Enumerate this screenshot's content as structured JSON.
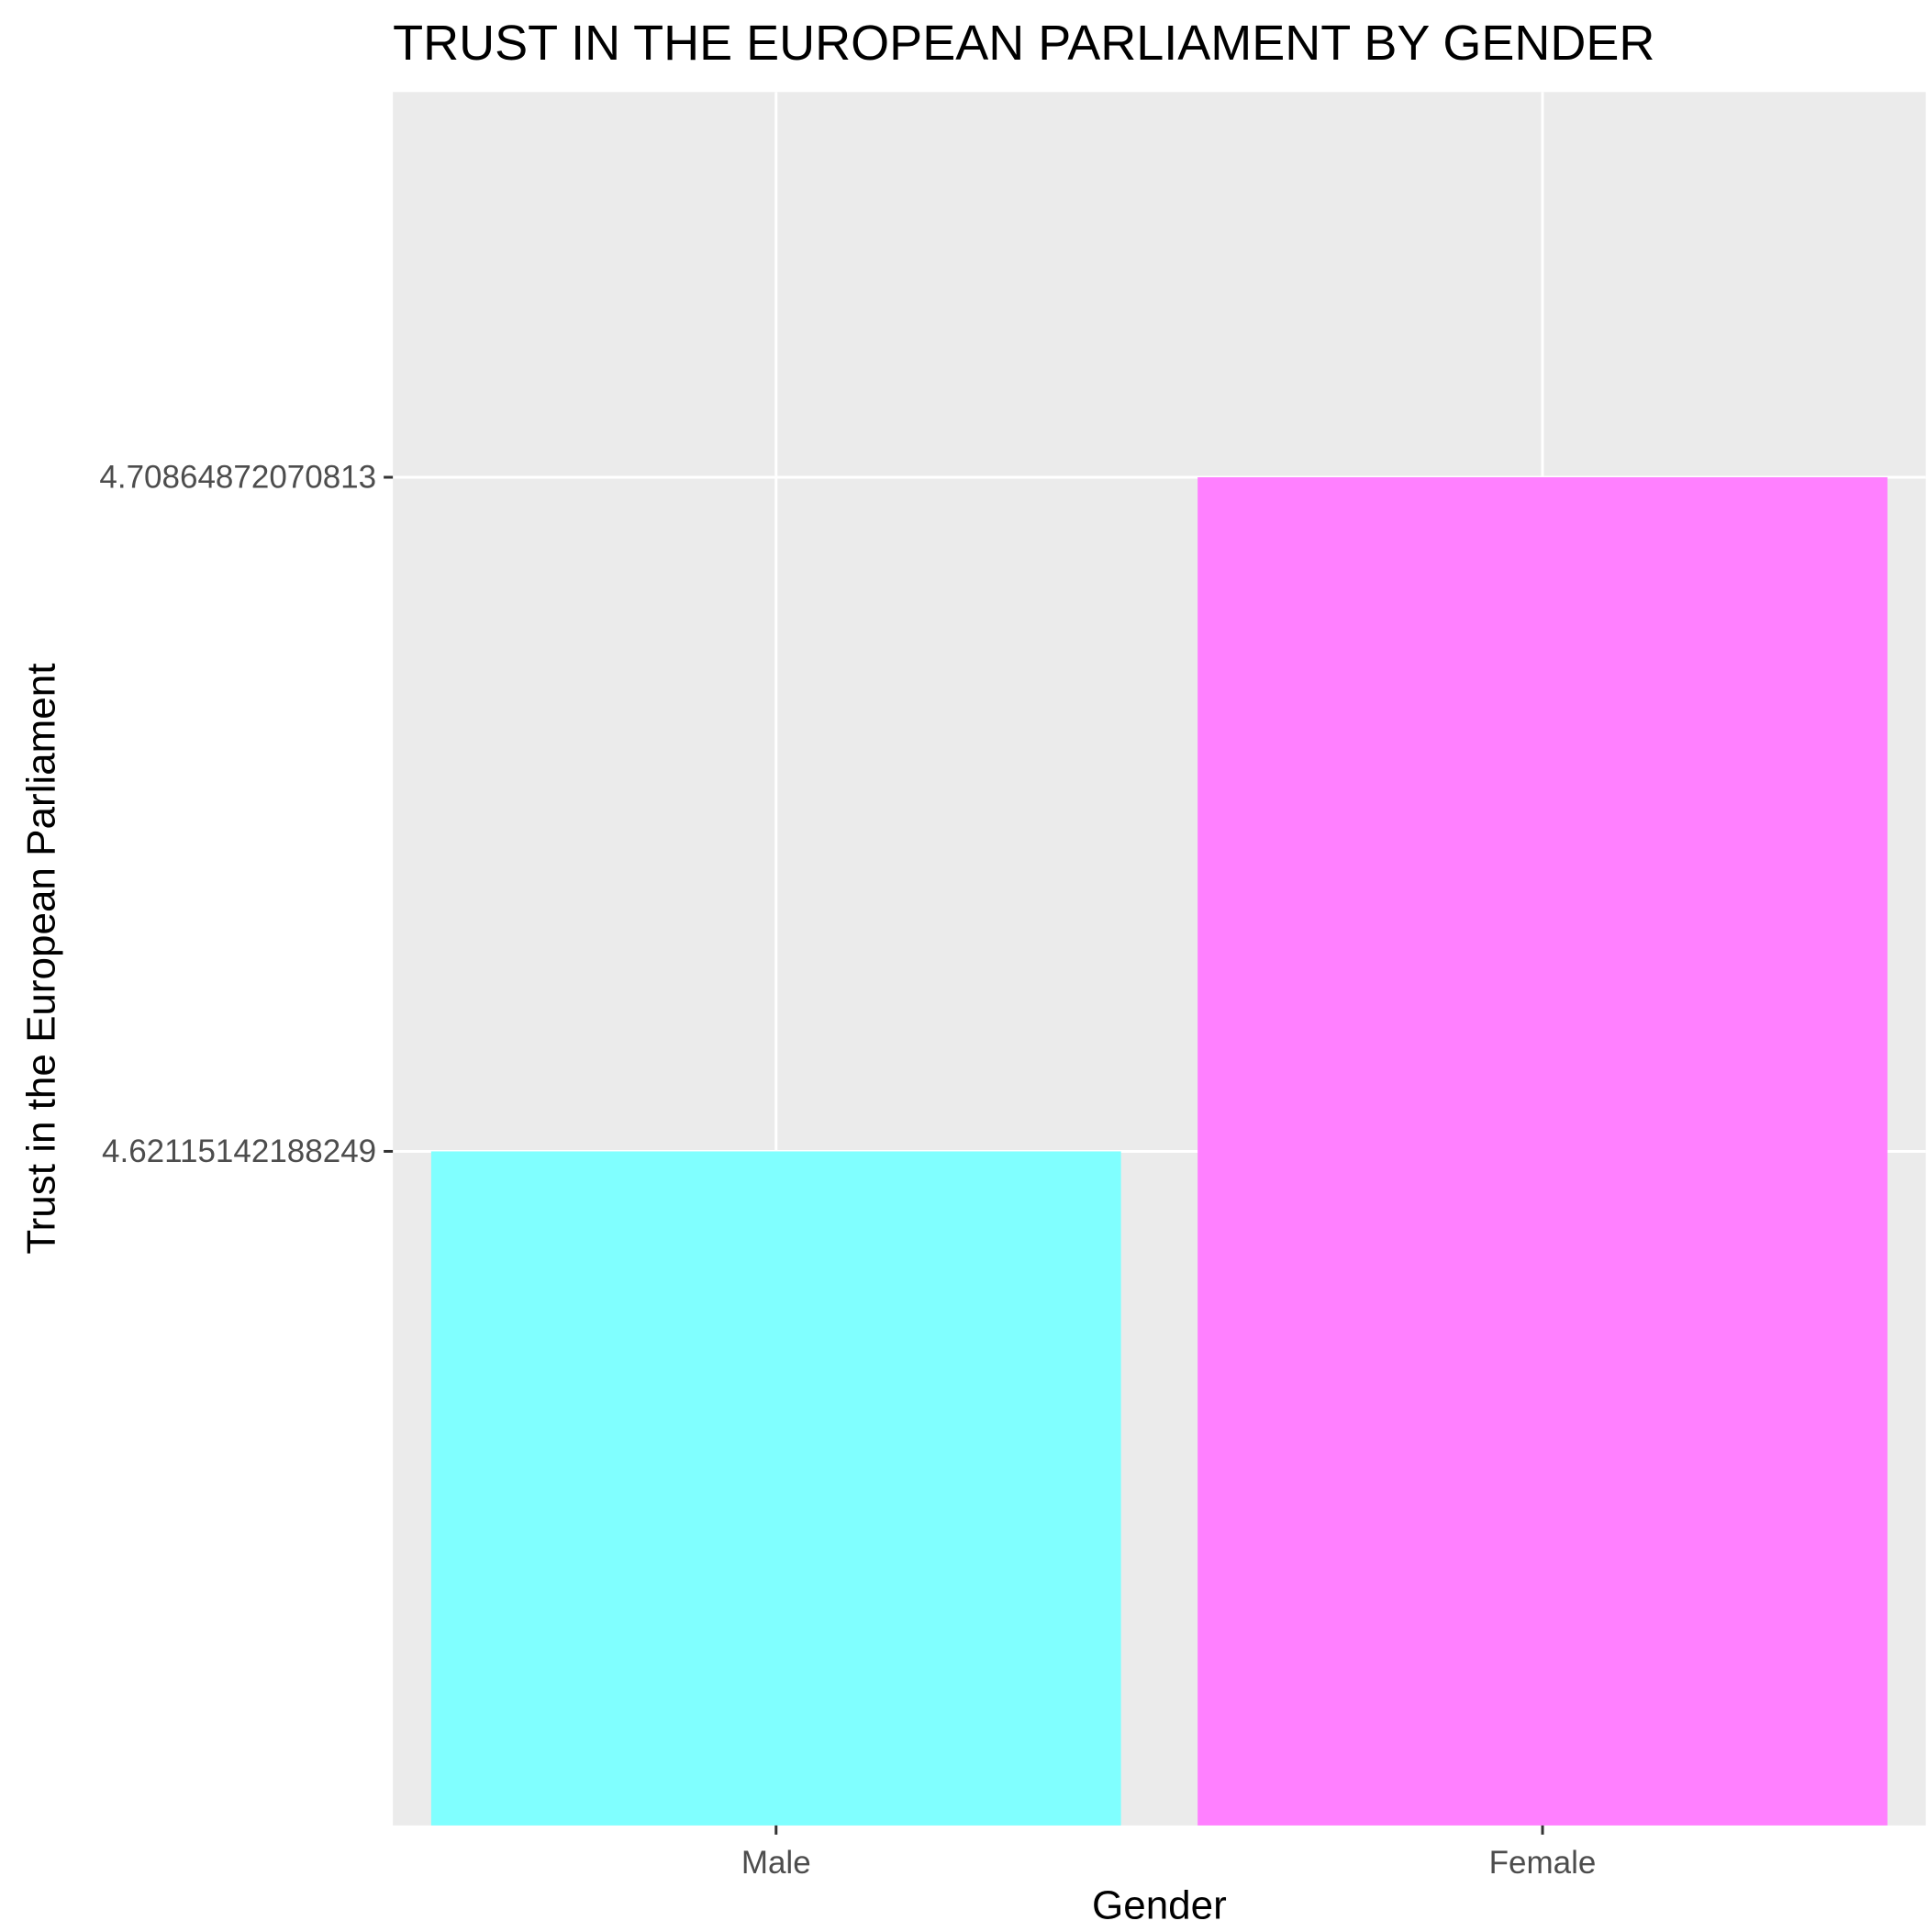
{
  "chart_data": {
    "type": "bar",
    "title": "TRUST IN THE EUROPEAN PARLIAMENT BY GENDER",
    "xlabel": "Gender",
    "ylabel": "Trust in the European Parliament",
    "categories": [
      "Male",
      "Female"
    ],
    "values": [
      4.62115142188249,
      4.70864872070813
    ],
    "bar_colors": [
      "#80FFFF",
      "#FF80FF"
    ],
    "y_ticks": [
      4.62115142188249,
      4.70864872070813
    ],
    "y_tick_labels": [
      "4.62115142188249",
      "4.70864872070813"
    ],
    "ylim": [
      4.5336541230669,
      4.7586541230669
    ],
    "grid": true,
    "legend": "none",
    "panel_background": "#EBEBEB",
    "grid_color": "#FFFFFF"
  }
}
